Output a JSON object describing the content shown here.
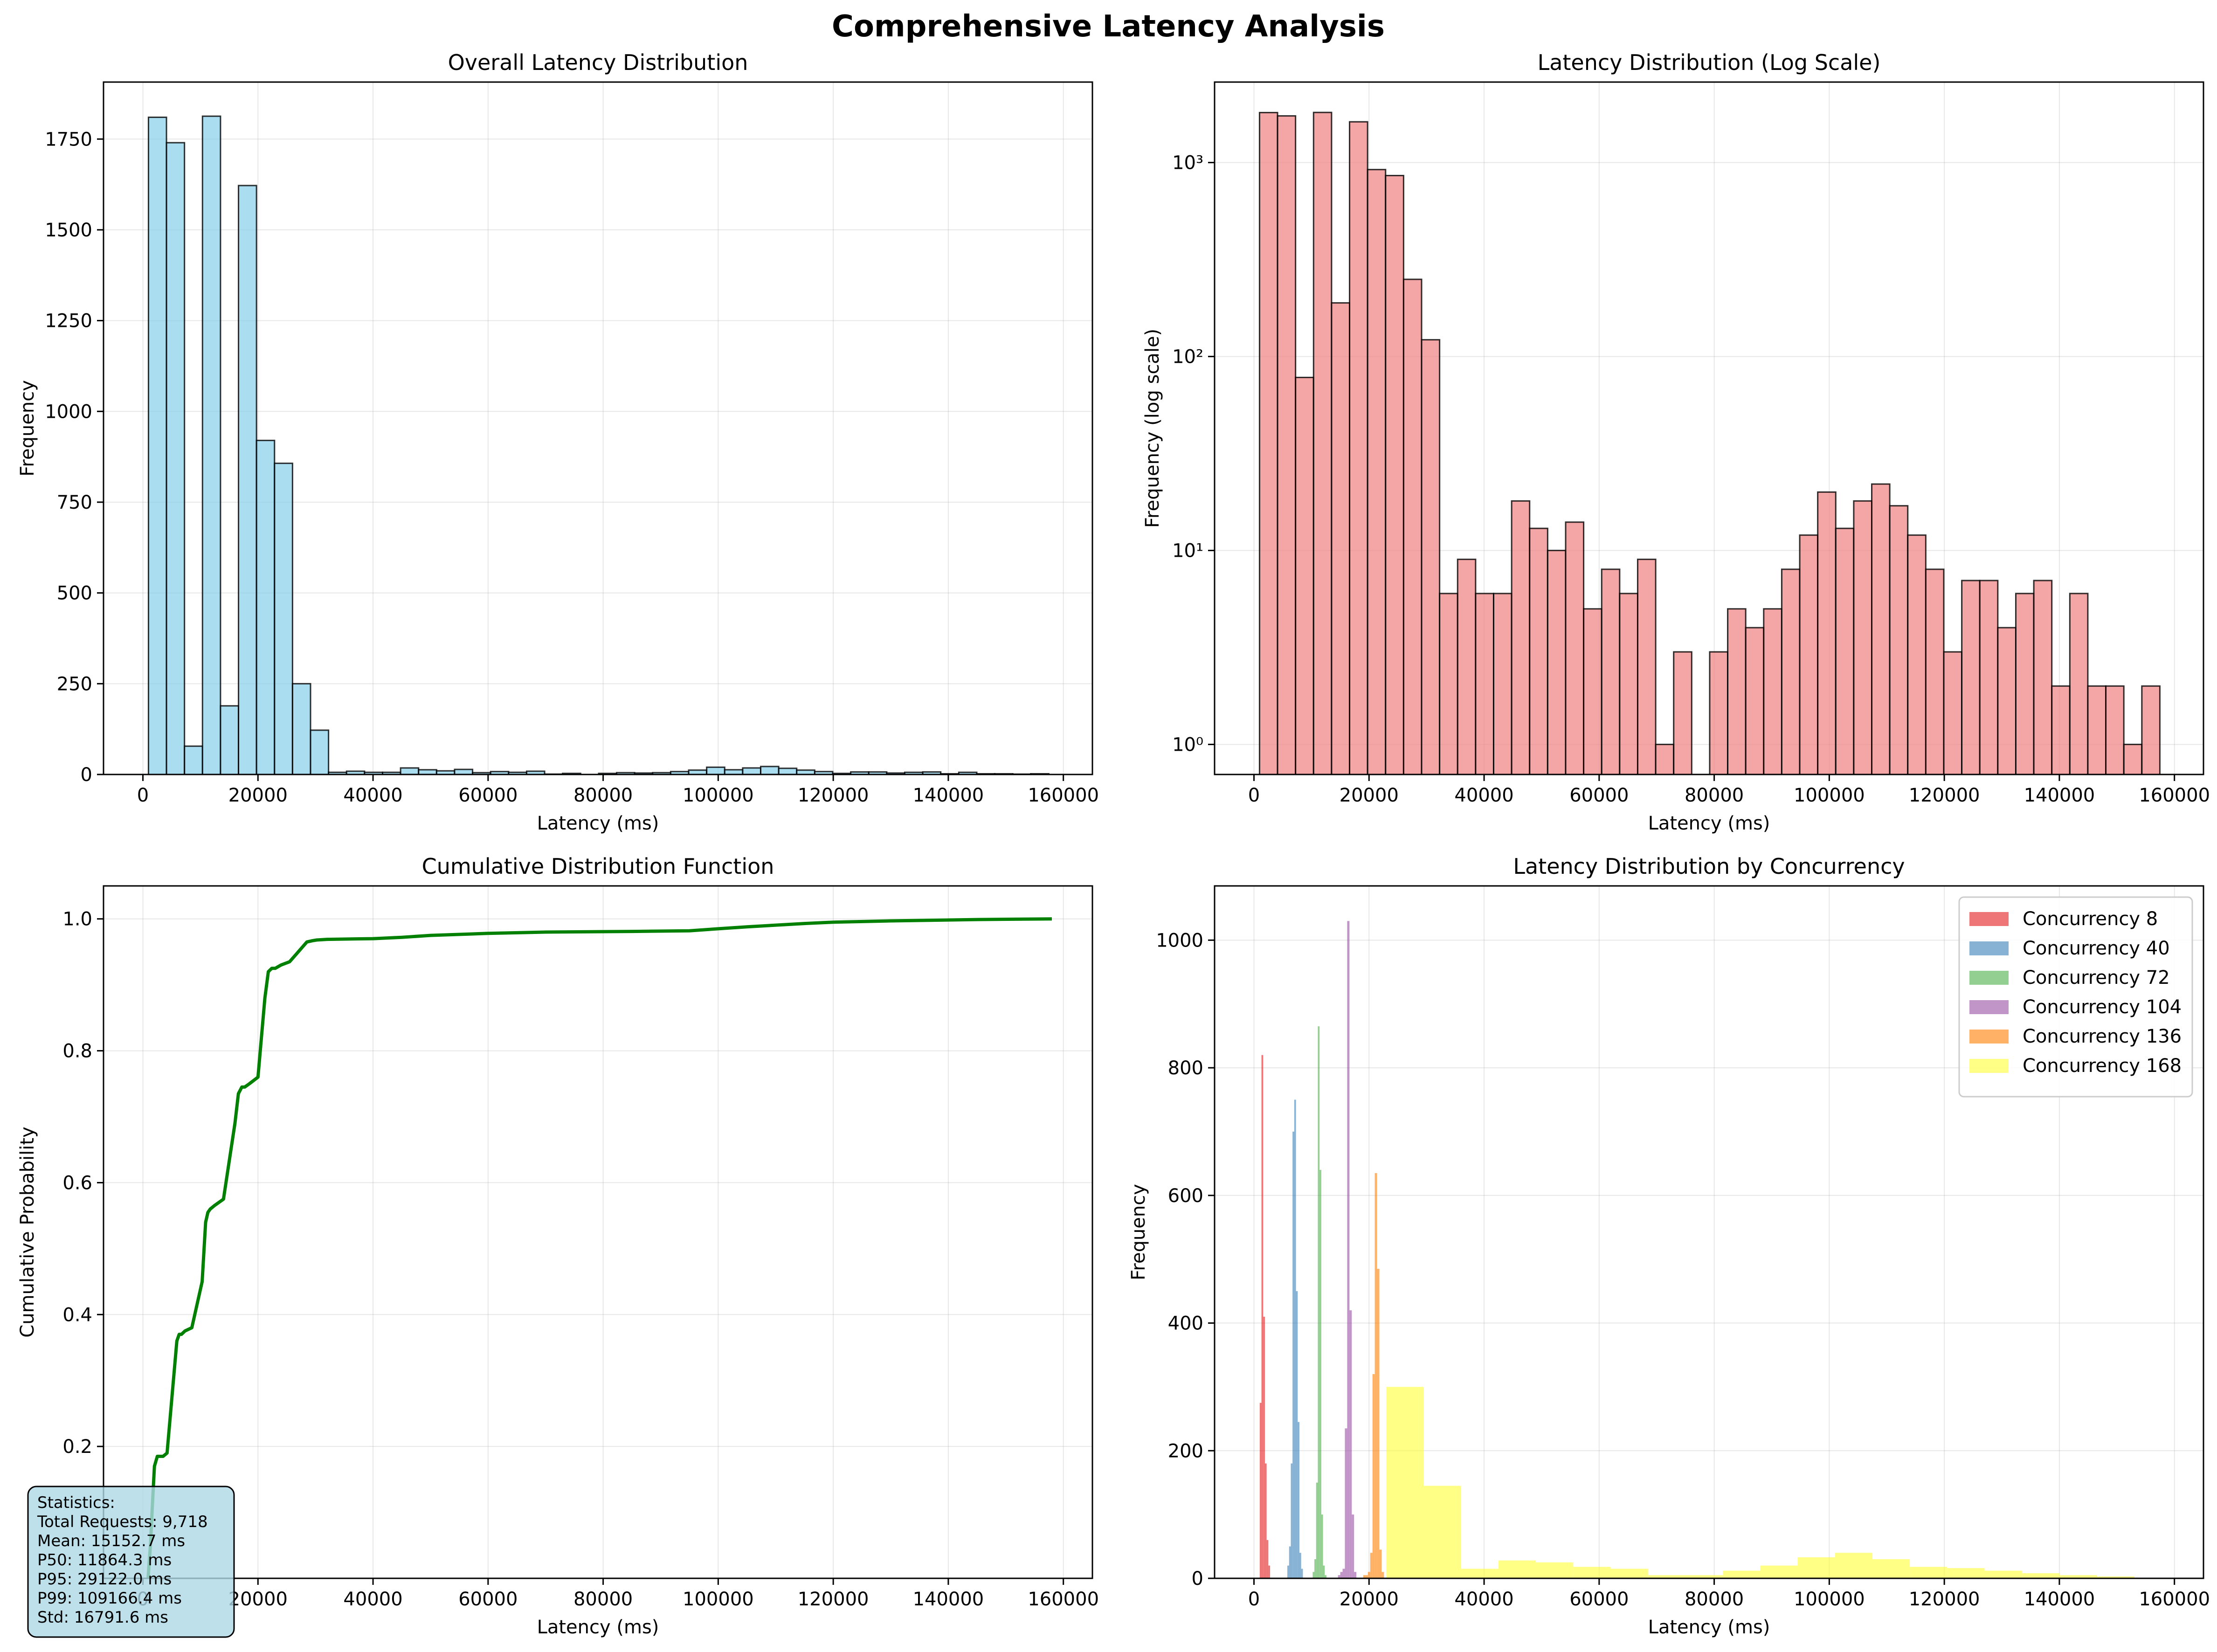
{
  "figure": {
    "suptitle": "Comprehensive Latency Analysis"
  },
  "chart_data": [
    {
      "id": "hist",
      "type": "bar",
      "title": "Overall Latency Distribution",
      "xlabel": "Latency (ms)",
      "ylabel": "Frequency",
      "xlim": [
        -6850,
        165050
      ],
      "ylim": [
        0,
        1907
      ],
      "xticks": [
        0,
        20000,
        40000,
        60000,
        80000,
        100000,
        120000,
        140000,
        160000
      ],
      "yticks": [
        0,
        250,
        500,
        750,
        1000,
        1250,
        1500,
        1750
      ],
      "grid": true,
      "color": "#87ceeb",
      "bin_start": 966,
      "bin_width": 3130,
      "values": [
        1810,
        1740,
        78,
        1813,
        189,
        1622,
        920,
        857,
        250,
        122,
        6,
        9,
        6,
        6,
        18,
        13,
        10,
        14,
        5,
        8,
        6,
        9,
        1,
        3,
        0,
        3,
        5,
        4,
        5,
        8,
        12,
        20,
        13,
        18,
        22,
        17,
        12,
        8,
        3,
        7,
        7,
        4,
        6,
        7,
        2,
        6,
        2,
        2,
        1,
        2
      ]
    },
    {
      "id": "hist-log",
      "type": "bar",
      "title": "Latency Distribution (Log Scale)",
      "xlabel": "Latency (ms)",
      "ylabel": "Frequency (log scale)",
      "yscale": "log",
      "xlim": [
        -6850,
        165050
      ],
      "ylim": [
        0.7,
        2600
      ],
      "xticks": [
        0,
        20000,
        40000,
        60000,
        80000,
        100000,
        120000,
        140000,
        160000
      ],
      "yticks": [
        1,
        10,
        100,
        1000
      ],
      "ytick_labels": [
        "10⁰",
        "10¹",
        "10²",
        "10³"
      ],
      "grid": true,
      "color": "#f08080",
      "bin_start": 966,
      "bin_width": 3130,
      "values": [
        1810,
        1740,
        78,
        1813,
        189,
        1622,
        920,
        857,
        250,
        122,
        6,
        9,
        6,
        6,
        18,
        13,
        10,
        14,
        5,
        8,
        6,
        9,
        1,
        3,
        0,
        3,
        5,
        4,
        5,
        8,
        12,
        20,
        13,
        18,
        22,
        17,
        12,
        8,
        3,
        7,
        7,
        4,
        6,
        7,
        2,
        6,
        2,
        2,
        1,
        2
      ]
    },
    {
      "id": "cdf",
      "type": "line",
      "title": "Cumulative Distribution Function",
      "xlabel": "Latency (ms)",
      "ylabel": "Cumulative Probability",
      "xlim": [
        -6850,
        165050
      ],
      "ylim": [
        0,
        1.05
      ],
      "xticks": [
        0,
        20000,
        40000,
        60000,
        80000,
        100000,
        120000,
        140000,
        160000
      ],
      "yticks": [
        0.2,
        0.4,
        0.6,
        0.8,
        1.0
      ],
      "ytick_labels": [
        "0.2",
        "0.4",
        "0.6",
        "0.8",
        "1.0"
      ],
      "grid": true,
      "color": "#008000",
      "x": [
        900,
        1300,
        1700,
        2000,
        2500,
        3500,
        4200,
        5300,
        5900,
        6300,
        6700,
        7300,
        8500,
        10300,
        10900,
        11300,
        11700,
        12400,
        14000,
        16000,
        16600,
        17200,
        17700,
        18500,
        20000,
        21200,
        21800,
        22400,
        23000,
        24000,
        25500,
        27000,
        28500,
        29500,
        30200,
        32000,
        40000,
        45000,
        50000,
        60000,
        70000,
        85000,
        95000,
        100000,
        105000,
        115000,
        120000,
        130000,
        145000,
        158000
      ],
      "y": [
        0.0,
        0.05,
        0.12,
        0.17,
        0.185,
        0.185,
        0.19,
        0.3,
        0.36,
        0.37,
        0.37,
        0.375,
        0.38,
        0.45,
        0.54,
        0.555,
        0.56,
        0.565,
        0.575,
        0.69,
        0.735,
        0.745,
        0.745,
        0.75,
        0.76,
        0.88,
        0.92,
        0.925,
        0.925,
        0.93,
        0.935,
        0.95,
        0.965,
        0.967,
        0.968,
        0.969,
        0.97,
        0.972,
        0.975,
        0.978,
        0.98,
        0.981,
        0.982,
        0.985,
        0.988,
        0.993,
        0.995,
        0.997,
        0.999,
        1.0
      ],
      "stats_box": {
        "title": "Statistics:",
        "lines": [
          "Total Requests: 9,718",
          "Mean: 15152.7 ms",
          "P50: 11864.3 ms",
          "P95: 29122.0 ms",
          "P99: 109166.4 ms",
          "Std: 16791.6 ms"
        ]
      }
    },
    {
      "id": "by-conc",
      "type": "bar",
      "title": "Latency Distribution by Concurrency",
      "xlabel": "Latency (ms)",
      "ylabel": "Frequency",
      "xlim": [
        -6850,
        165050
      ],
      "ylim": [
        0,
        1085
      ],
      "xticks": [
        0,
        20000,
        40000,
        60000,
        80000,
        100000,
        120000,
        140000,
        160000
      ],
      "yticks": [
        0,
        200,
        400,
        600,
        800,
        1000
      ],
      "grid": true,
      "legend_position": "top-right",
      "series": [
        {
          "name": "Concurrency 8",
          "color": "#e41a1c",
          "bin_start": 1000,
          "bin_width": 300,
          "values": [
            275,
            820,
            410,
            180,
            60,
            20
          ]
        },
        {
          "name": "Concurrency 40",
          "color": "#377eb8",
          "bin_start": 5800,
          "bin_width": 300,
          "values": [
            20,
            50,
            180,
            700,
            750,
            450,
            245,
            40,
            15
          ]
        },
        {
          "name": "Concurrency 72",
          "color": "#4daf4a",
          "bin_start": 10200,
          "bin_width": 300,
          "values": [
            10,
            30,
            150,
            865,
            640,
            100,
            20,
            5
          ]
        },
        {
          "name": "Concurrency 104",
          "color": "#984ea3",
          "bin_start": 14600,
          "bin_width": 400,
          "values": [
            5,
            10,
            15,
            235,
            1030,
            420,
            100,
            10
          ]
        },
        {
          "name": "Concurrency 136",
          "color": "#ff7f00",
          "bin_start": 19000,
          "bin_width": 400,
          "values": [
            5,
            5,
            10,
            40,
            320,
            635,
            485,
            45,
            10
          ]
        },
        {
          "name": "Concurrency 168",
          "color": "#ffff33",
          "bin_start": 23000,
          "bin_width": 6500,
          "values": [
            300,
            145,
            15,
            28,
            25,
            18,
            15,
            5,
            5,
            12,
            20,
            33,
            40,
            30,
            18,
            16,
            12,
            8,
            5,
            3
          ]
        }
      ]
    }
  ]
}
